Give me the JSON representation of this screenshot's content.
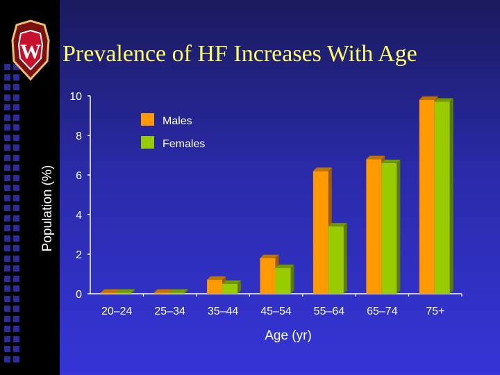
{
  "slide": {
    "title": "Prevalence of HF Increases With Age",
    "logo": "University of Wisconsin crest"
  },
  "icons": {
    "logo": "wisconsin-crest-icon"
  },
  "colors": {
    "title": "#ffff66",
    "males": "#ff9900",
    "females": "#99cc00",
    "background_top": "#1a1a5e",
    "background_bottom": "#3535d8"
  },
  "chart_data": {
    "type": "bar",
    "title": "",
    "xlabel": "Age (yr)",
    "ylabel": "Population (%)",
    "ylim": [
      0,
      10
    ],
    "yticks": [
      0,
      2,
      4,
      6,
      8,
      10
    ],
    "categories": [
      "20–24",
      "25–34",
      "35–44",
      "45–54",
      "55–64",
      "65–74",
      "75+"
    ],
    "series": [
      {
        "name": "Males",
        "values": [
          0.05,
          0.05,
          0.7,
          1.8,
          6.2,
          6.8,
          9.8
        ],
        "color": "#ff9900"
      },
      {
        "name": "Females",
        "values": [
          0.05,
          0.05,
          0.5,
          1.3,
          3.4,
          6.6,
          9.7
        ],
        "color": "#99cc00"
      }
    ],
    "legend": "top-left of plot",
    "grid": false,
    "style": "3d"
  }
}
